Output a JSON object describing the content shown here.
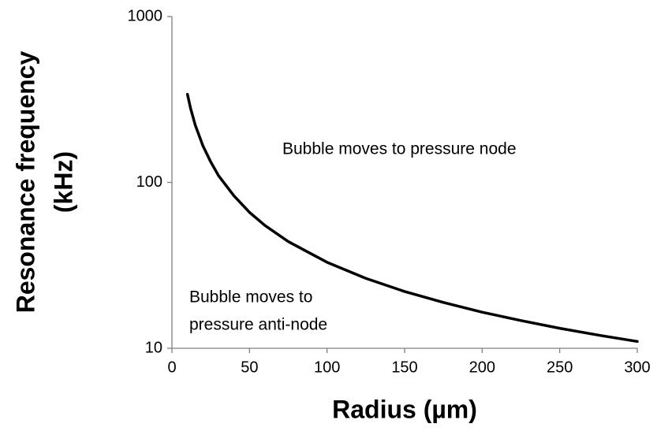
{
  "chart_data": {
    "type": "line",
    "x": [
      10,
      12,
      15,
      20,
      25,
      30,
      40,
      50,
      60,
      75,
      100,
      125,
      150,
      175,
      200,
      225,
      250,
      275,
      300
    ],
    "series": [
      {
        "color": "#000000",
        "values": [
          340,
          280,
          222,
          166,
          133,
          110,
          83,
          66,
          55,
          44,
          33,
          26.4,
          22,
          18.9,
          16.5,
          14.7,
          13.2,
          12,
          11
        ]
      }
    ],
    "xlabel": "Radius (µm)",
    "ylabel": [
      "Resonance frequency",
      "(kHz)"
    ],
    "xlim": [
      0,
      300
    ],
    "xticks": [
      0,
      50,
      100,
      150,
      200,
      250,
      300
    ],
    "ylim": [
      10,
      1000
    ],
    "yticks": [
      10,
      100,
      1000
    ],
    "log_y": true,
    "grid": false,
    "annotations": [
      [
        "Bubble moves to pressure node"
      ],
      [
        "Bubble moves to",
        "pressure anti-node"
      ]
    ]
  }
}
